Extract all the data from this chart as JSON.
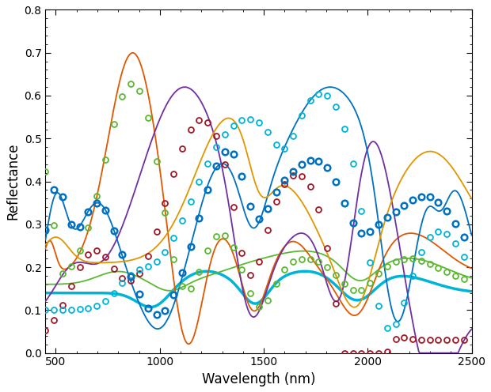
{
  "xlim": [
    450,
    2500
  ],
  "ylim": [
    0,
    0.8
  ],
  "xlabel": "Wavelength (nm)",
  "ylabel": "Reflectance",
  "xticks": [
    500,
    1000,
    1500,
    2000,
    2500
  ],
  "yticks": [
    0.0,
    0.1,
    0.2,
    0.3,
    0.4,
    0.5,
    0.6,
    0.7,
    0.8
  ],
  "figsize": [
    6.2,
    4.96
  ],
  "dpi": 100,
  "colors": {
    "orange": "#E05800",
    "green": "#5CB832",
    "purple": "#7030A0",
    "darkred": "#A01828",
    "blue": "#0070C0",
    "cyan": "#00B4D8",
    "gold": "#E09600",
    "navyblue": "#0070C0"
  },
  "lw": 1.3,
  "lw_thick": 2.5,
  "ms": 5.0,
  "mew": 1.3,
  "step": 10
}
